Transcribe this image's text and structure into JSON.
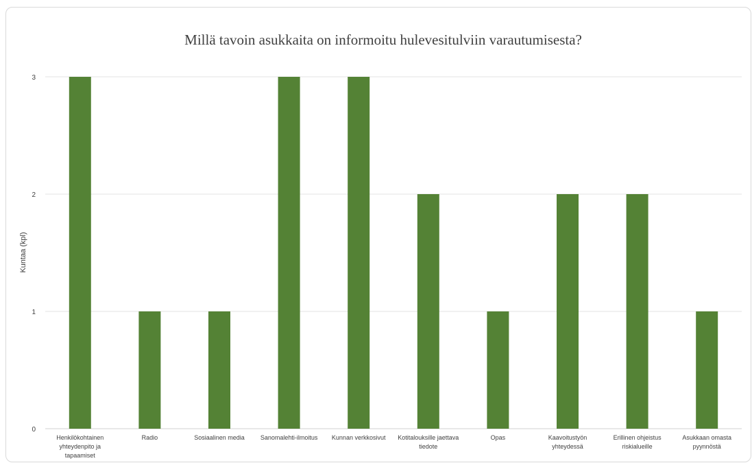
{
  "chart_data": {
    "type": "bar",
    "title": "Millä tavoin asukkaita on informoitu hulevesitulviin varautumisesta?",
    "xlabel": "",
    "ylabel": "Kuntaa (kpl)",
    "ylim": [
      0,
      3
    ],
    "yticks": [
      "0",
      "1",
      "2",
      "3"
    ],
    "grid": true,
    "legend": "none",
    "bar_color": "#548235",
    "categories": [
      [
        "Henkilökohtainen",
        "yhteydenpito ja",
        "tapaamiset"
      ],
      [
        "Radio"
      ],
      [
        "Sosiaalinen media"
      ],
      [
        "Sanomalehti-ilmoitus"
      ],
      [
        "Kunnan verkkosivut"
      ],
      [
        "Kotitalouksille jaettava",
        "tiedote"
      ],
      [
        "Opas"
      ],
      [
        "Kaavoitustyön",
        "yhteydessä"
      ],
      [
        "Erillinen ohjeistus",
        "riskialueille"
      ],
      [
        "Asukkaan omasta",
        "pyynnöstä"
      ]
    ],
    "values": [
      3,
      1,
      1,
      3,
      3,
      2,
      1,
      2,
      2,
      1
    ]
  }
}
